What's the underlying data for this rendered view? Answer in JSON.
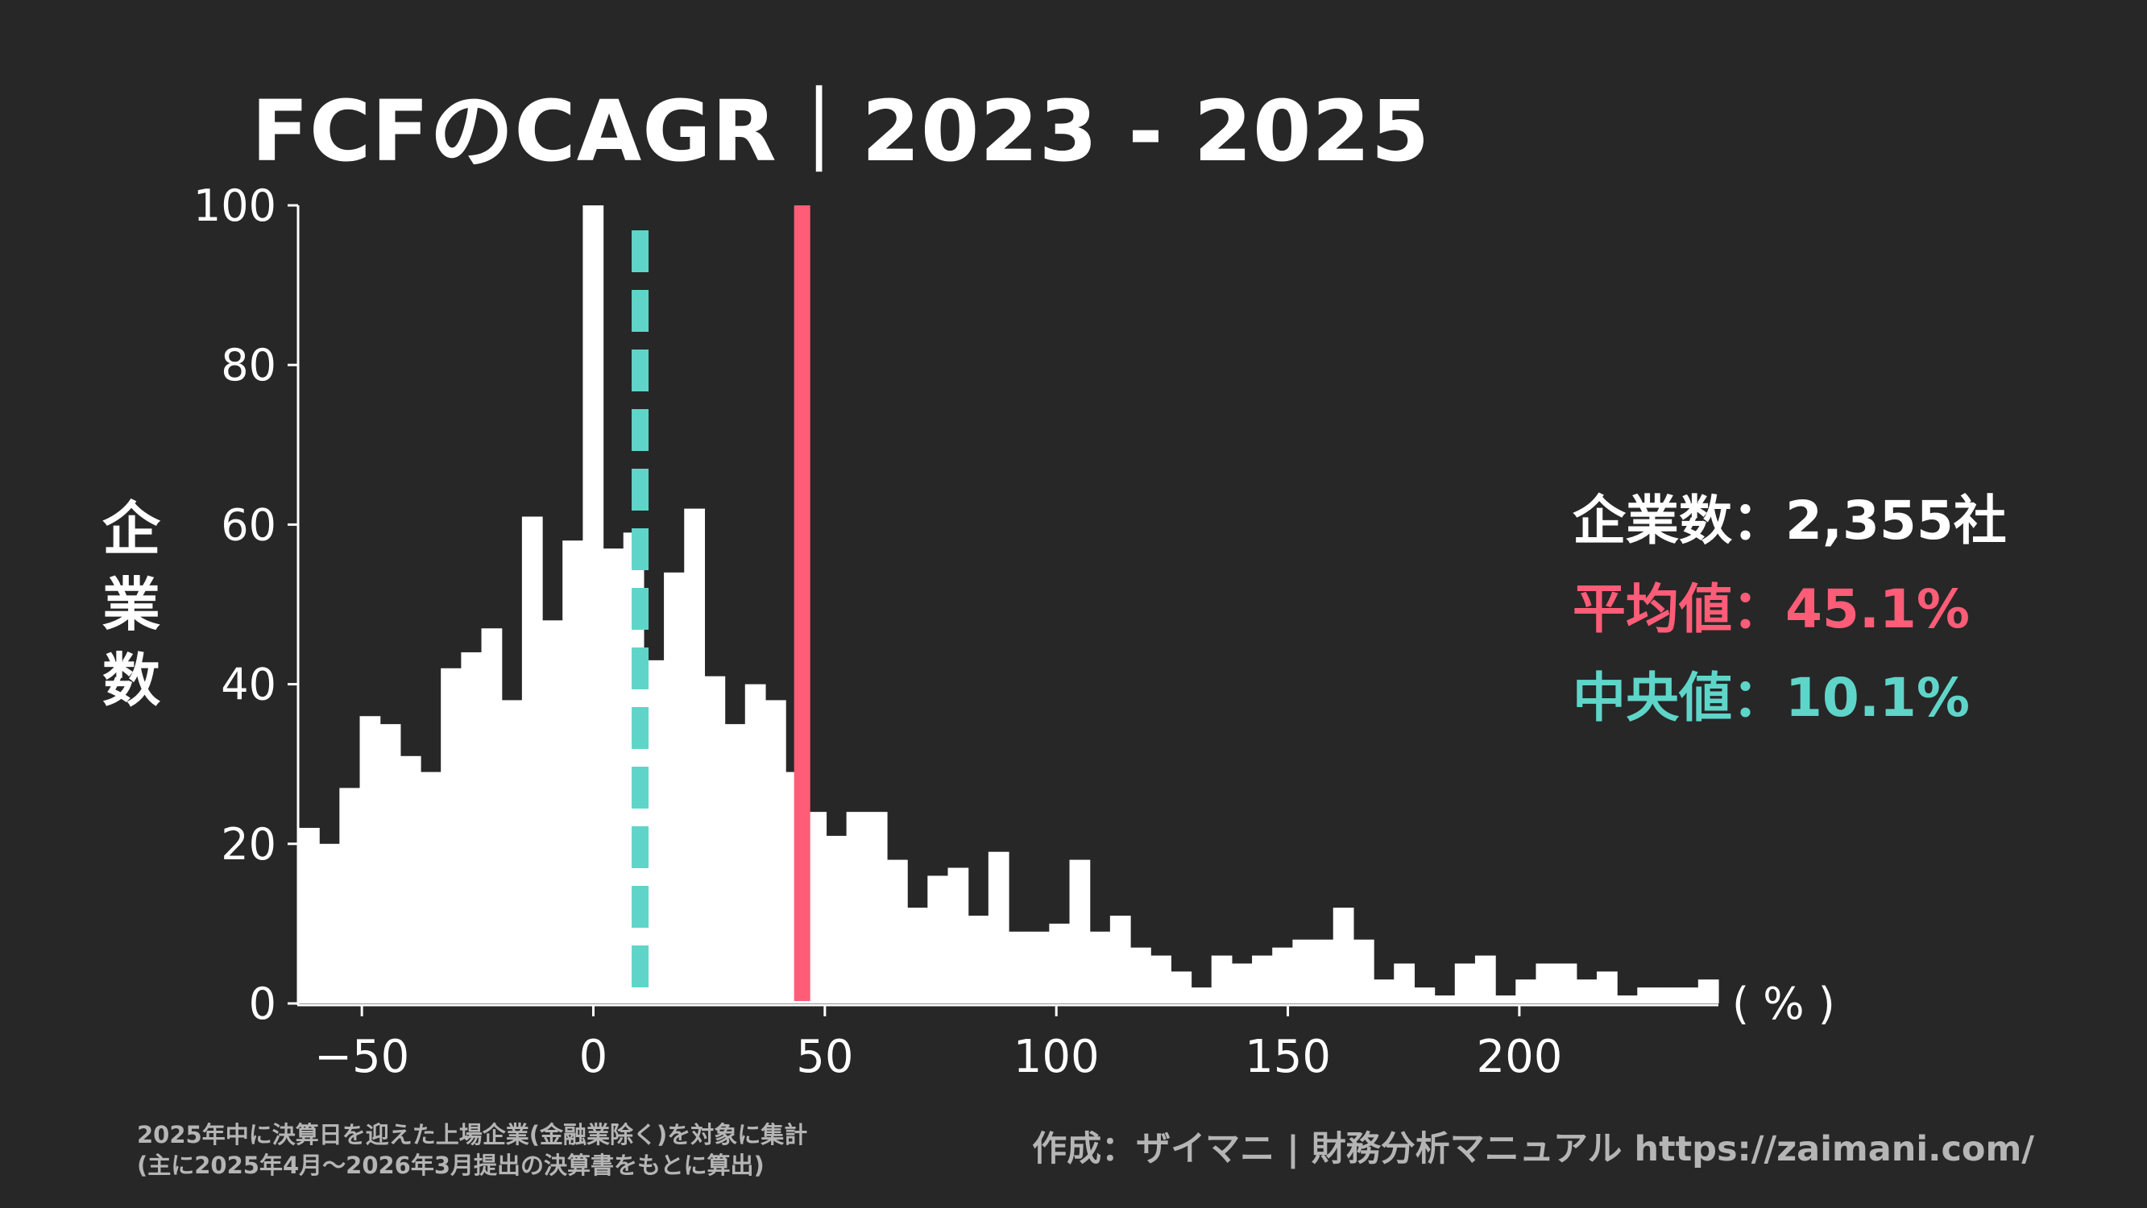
{
  "title": "FCFのCAGR｜2023 - 2025",
  "ylabel": "企業数",
  "unit_label": "( % )",
  "stats": {
    "count_label": "企業数：",
    "count_value": "2,355社",
    "mean_label": "平均値：",
    "mean_value": "45.1%",
    "median_label": "中央値：",
    "median_value": "10.1%"
  },
  "footnote": {
    "line1": "2025年中に決算日を迎えた上場企業(金融業除く)を対象に集計",
    "line2": "(主に2025年4月〜2026年3月提出の決算書をもとに算出)"
  },
  "credit": "作成：ザイマニ | 財務分析マニュアル https://zaimani.com/",
  "colors": {
    "background": "#272727",
    "bars": "#ffffff",
    "mean": "#ff5c77",
    "median": "#5fd5c9",
    "text": "#ffffff",
    "note": "#b5b5b5"
  },
  "chart_data": {
    "type": "bar",
    "subtype": "histogram",
    "title": "FCFのCAGR｜2023 - 2025",
    "xlabel": "( % )",
    "ylabel": "企業数",
    "xlim": [
      -63.6,
      243
    ],
    "ylim": [
      0,
      100
    ],
    "xticks": [
      -50,
      0,
      50,
      100,
      150,
      200
    ],
    "xtick_labels": [
      "−50",
      "0",
      "50",
      "100",
      "150",
      "200"
    ],
    "yticks": [
      0,
      20,
      40,
      60,
      80,
      100
    ],
    "ytick_labels": [
      "0",
      "20",
      "40",
      "60",
      "80",
      "100"
    ],
    "grid": false,
    "bin_start": -63.6,
    "bin_width": 4.38,
    "values": [
      22,
      20,
      27,
      36,
      35,
      31,
      29,
      42,
      44,
      47,
      38,
      61,
      48,
      58,
      100,
      57,
      59,
      43,
      54,
      62,
      41,
      35,
      40,
      38,
      29,
      24,
      21,
      24,
      24,
      18,
      12,
      16,
      17,
      11,
      19,
      9,
      9,
      10,
      18,
      9,
      11,
      7,
      6,
      4,
      2,
      6,
      5,
      6,
      7,
      8,
      8,
      12,
      8,
      3,
      5,
      2,
      1,
      5,
      6,
      1,
      3,
      5,
      5,
      3,
      4,
      1,
      2,
      2,
      2,
      3
    ],
    "mean": 45.1,
    "median": 10.1,
    "count": 2355
  }
}
